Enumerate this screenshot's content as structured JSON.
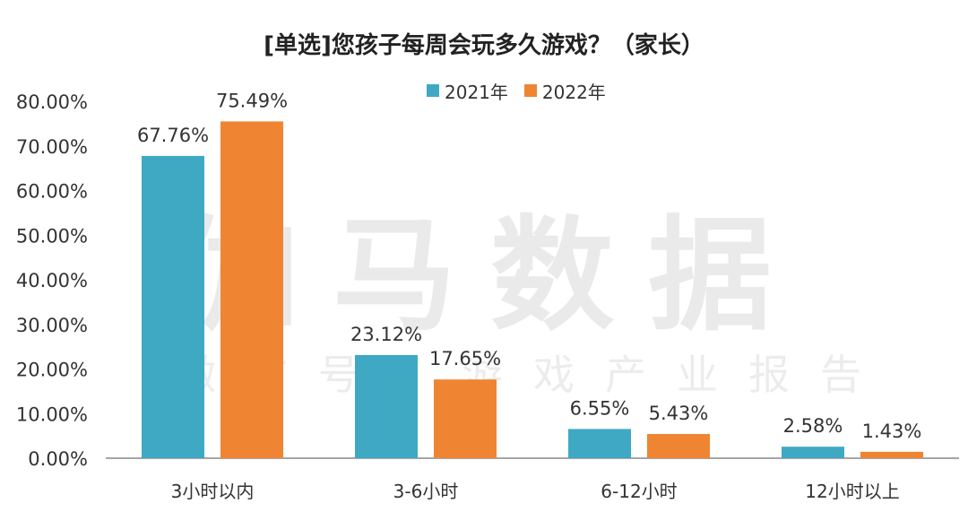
{
  "colors": {
    "series_2021": "#3fa9c4",
    "series_2022": "#ef8532",
    "axis": "#888888",
    "text": "#333333"
  },
  "watermark": {
    "main": "伽马数据",
    "sub": "微信号：游戏产业报告"
  },
  "chart_data": {
    "type": "bar",
    "title": "[单选]您孩子每周会玩多久游戏？（家长）",
    "categories": [
      "3小时以内",
      "3-6小时",
      "6-12小时",
      "12小时以上"
    ],
    "series": [
      {
        "name": "2021年",
        "values": [
          67.76,
          23.12,
          6.55,
          2.58
        ],
        "labels": [
          "67.76%",
          "23.12%",
          "6.55%",
          "2.58%"
        ]
      },
      {
        "name": "2022年",
        "values": [
          75.49,
          17.65,
          5.43,
          1.43
        ],
        "labels": [
          "75.49%",
          "17.65%",
          "5.43%",
          "1.43%"
        ]
      }
    ],
    "ylim": [
      0,
      80
    ],
    "yticks": [
      "0.00%",
      "10.00%",
      "20.00%",
      "30.00%",
      "40.00%",
      "50.00%",
      "60.00%",
      "70.00%",
      "80.00%"
    ],
    "xlabel": "",
    "ylabel": "",
    "legend_position": "top-center",
    "grid": false
  }
}
